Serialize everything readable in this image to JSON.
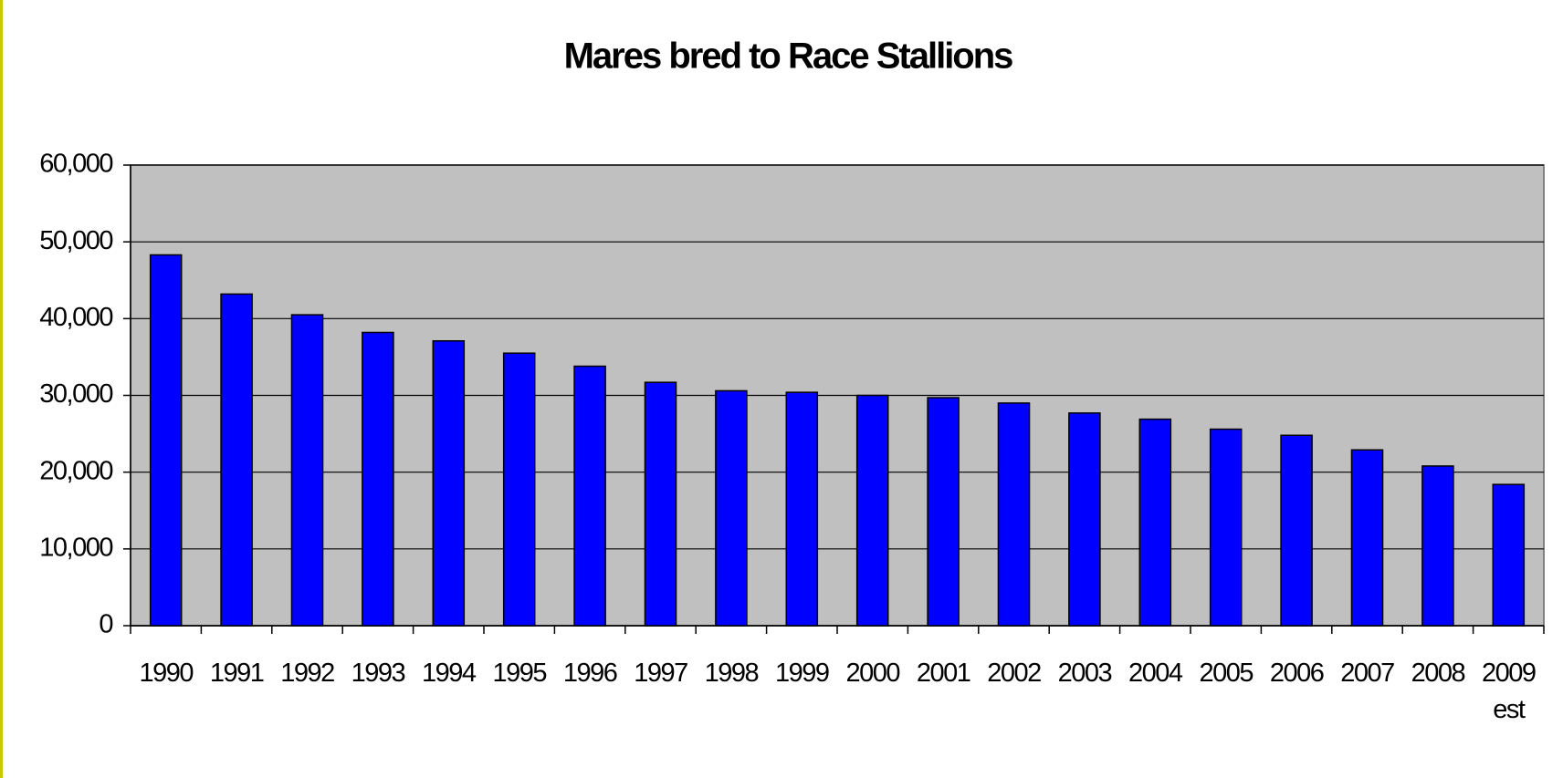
{
  "chart_data": {
    "type": "bar",
    "title": "Mares bred to Race Stallions",
    "categories": [
      "1990",
      "1991",
      "1992",
      "1993",
      "1994",
      "1995",
      "1996",
      "1997",
      "1998",
      "1999",
      "2000",
      "2001",
      "2002",
      "2003",
      "2004",
      "2005",
      "2006",
      "2007",
      "2008",
      "2009 est"
    ],
    "values": [
      48300,
      43200,
      40500,
      38200,
      37100,
      35500,
      33800,
      31700,
      30600,
      30400,
      30000,
      29700,
      29000,
      27700,
      26900,
      25600,
      24800,
      22900,
      20800,
      18400
    ],
    "color": "#0000ff",
    "ylim": [
      0,
      60000
    ],
    "yticks": [
      0,
      {
        "value": 10000,
        "label": "10,000"
      },
      {
        "value": 20000,
        "label": "20,000"
      },
      {
        "value": 30000,
        "label": "30,000"
      },
      {
        "value": 40000,
        "label": "40,000"
      },
      {
        "value": 50000,
        "label": "50,000"
      },
      {
        "value": 60000,
        "label": "60,000"
      }
    ],
    "grid": true
  }
}
